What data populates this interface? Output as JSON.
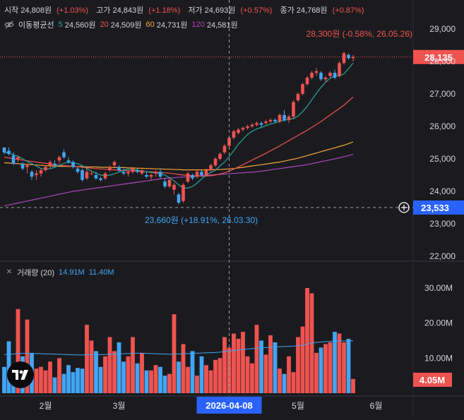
{
  "header": {
    "ohlc": [
      {
        "label": "시작",
        "value": "24,808원",
        "change": "(+1.03%)"
      },
      {
        "label": "고가",
        "value": "24,843원",
        "change": "(+1.18%)"
      },
      {
        "label": "저가",
        "value": "24,693원",
        "change": "(+0.57%)"
      },
      {
        "label": "종가",
        "value": "24,768원",
        "change": "(+0.87%)"
      }
    ],
    "ma_title": "이동평균선",
    "ma": [
      {
        "period": "5",
        "value": "24,560원",
        "color": "#26a69a"
      },
      {
        "period": "20",
        "value": "24,509원",
        "color": "#ef5350"
      },
      {
        "period": "60",
        "value": "24,731원",
        "color": "#f7a53b"
      },
      {
        "period": "120",
        "value": "24,581원",
        "color": "#ab47bc"
      }
    ],
    "volume_title": "거래량 (20)",
    "volume_ma_values": [
      "14.91M",
      "11.40M"
    ],
    "volume_value_color": "#42a5f5"
  },
  "annotations": {
    "high": "28,300원 (-0.58%, 26.05.26)",
    "low": "23,660원 (+18.91%, 26.03.30)"
  },
  "price_axis": {
    "ticks": [
      "29,000",
      "28,000",
      "27,000",
      "26,000",
      "25,000",
      "24,000",
      "23,000",
      "22,000"
    ],
    "current_label": "28,135",
    "crosshair_label": "23,533"
  },
  "volume_axis": {
    "ticks": [
      "30.00M",
      "20.00M",
      "10.00M"
    ],
    "current_label": "4.05M"
  },
  "time_axis": {
    "labels": [
      "2월",
      "3월",
      "5월",
      "6월"
    ],
    "crosshair_label": "2026-04-08"
  },
  "colors": {
    "up": "#ef5350",
    "down": "#42a5f5",
    "background": "#1b1b1f",
    "ma5": "#26a69a",
    "ma20": "#ef5350",
    "ma60": "#f7a53b",
    "ma120": "#ab47bc",
    "crosshair_box": "#2962ff",
    "current_box": "#ef5350"
  },
  "chart_data": {
    "type": "candlestick",
    "price_range": [
      22000,
      29300
    ],
    "volume_range": [
      0,
      33000000
    ],
    "series": [
      {
        "name": "캔들",
        "candles": [
          [
            25350,
            25350,
            25150,
            25200
          ],
          [
            25250,
            25350,
            25100,
            25150
          ],
          [
            25100,
            25200,
            24800,
            24850
          ],
          [
            25000,
            25100,
            24900,
            25050
          ],
          [
            24850,
            24900,
            24650,
            24700
          ],
          [
            24750,
            24850,
            24550,
            24800
          ],
          [
            24600,
            24650,
            24350,
            24450
          ],
          [
            24500,
            24650,
            24350,
            24550
          ],
          [
            24550,
            24700,
            24450,
            24650
          ],
          [
            24650,
            24800,
            24600,
            24750
          ],
          [
            24800,
            24950,
            24700,
            24900
          ],
          [
            24850,
            24950,
            24750,
            24800
          ],
          [
            24950,
            25100,
            24850,
            25050
          ],
          [
            25200,
            25300,
            25000,
            25050
          ],
          [
            24950,
            25050,
            24850,
            24900
          ],
          [
            24900,
            24950,
            24700,
            24750
          ],
          [
            24700,
            24750,
            24550,
            24600
          ],
          [
            24650,
            24700,
            24300,
            24350
          ],
          [
            24400,
            24700,
            24350,
            24600
          ],
          [
            24550,
            24650,
            24500,
            24550
          ],
          [
            24500,
            24600,
            24350,
            24400
          ],
          [
            24400,
            24450,
            24300,
            24350
          ],
          [
            24400,
            24600,
            24350,
            24550
          ],
          [
            24650,
            24800,
            24600,
            24750
          ],
          [
            24800,
            24950,
            24750,
            24900
          ],
          [
            24750,
            24800,
            24600,
            24650
          ],
          [
            24600,
            24700,
            24500,
            24550
          ],
          [
            24550,
            24650,
            24450,
            24600
          ],
          [
            24600,
            24750,
            24550,
            24700
          ],
          [
            24650,
            24700,
            24550,
            24600
          ],
          [
            24550,
            24700,
            24500,
            24650
          ],
          [
            24500,
            24600,
            24400,
            24450
          ],
          [
            24450,
            24550,
            24350,
            24500
          ],
          [
            24550,
            24650,
            24450,
            24600
          ],
          [
            24600,
            24700,
            24400,
            24450
          ],
          [
            24300,
            24400,
            24100,
            24150
          ],
          [
            24150,
            24400,
            24100,
            24350
          ],
          [
            24050,
            24250,
            23900,
            24200
          ],
          [
            23900,
            23950,
            23600,
            23650
          ],
          [
            23700,
            24250,
            23650,
            24200
          ],
          [
            24300,
            24600,
            24250,
            24550
          ],
          [
            24500,
            24550,
            24350,
            24400
          ],
          [
            24450,
            24650,
            24400,
            24600
          ],
          [
            24600,
            24650,
            24450,
            24500
          ],
          [
            24500,
            24700,
            24450,
            24650
          ],
          [
            24650,
            24850,
            24600,
            24800
          ],
          [
            24800,
            25050,
            24750,
            25000
          ],
          [
            25000,
            25200,
            24950,
            25150
          ],
          [
            25200,
            25450,
            25150,
            25400
          ],
          [
            25400,
            25700,
            25350,
            25650
          ],
          [
            25650,
            25900,
            25600,
            25850
          ],
          [
            25800,
            25950,
            25750,
            25900
          ],
          [
            25900,
            26000,
            25850,
            25950
          ],
          [
            25950,
            26050,
            25900,
            26000
          ],
          [
            26000,
            26100,
            25950,
            26050
          ],
          [
            26050,
            26150,
            26000,
            26100
          ],
          [
            26100,
            26150,
            25950,
            26050
          ],
          [
            26100,
            26200,
            26050,
            26150
          ],
          [
            26150,
            26250,
            26100,
            26200
          ],
          [
            26200,
            26250,
            26100,
            26150
          ],
          [
            26150,
            26400,
            26100,
            26350
          ],
          [
            26350,
            26500,
            26150,
            26200
          ],
          [
            26200,
            26350,
            26100,
            26300
          ],
          [
            26300,
            26800,
            26250,
            26750
          ],
          [
            26800,
            27050,
            26750,
            27000
          ],
          [
            27000,
            27350,
            26950,
            27300
          ],
          [
            27300,
            27550,
            27250,
            27500
          ],
          [
            27500,
            27700,
            27450,
            27650
          ],
          [
            27650,
            27800,
            27550,
            27700
          ],
          [
            27650,
            27700,
            27400,
            27450
          ],
          [
            27450,
            27550,
            27350,
            27500
          ],
          [
            27550,
            27700,
            27500,
            27650
          ],
          [
            27650,
            27750,
            27450,
            27500
          ],
          [
            27550,
            28000,
            27500,
            27950
          ],
          [
            27950,
            28300,
            27900,
            28250
          ],
          [
            28200,
            28250,
            28050,
            28100
          ],
          [
            28100,
            28200,
            28000,
            28135
          ]
        ]
      },
      {
        "name": "이동평균 5",
        "values": [
          25200,
          25180,
          25120,
          25080,
          25000,
          24920,
          24850,
          24780,
          24700,
          24680,
          24700,
          24740,
          24800,
          24860,
          24900,
          24880,
          24850,
          24790,
          24700,
          24620,
          24560,
          24500,
          24480,
          24500,
          24540,
          24590,
          24650,
          24680,
          24680,
          24650,
          24620,
          24600,
          24580,
          24560,
          24540,
          24500,
          24420,
          24320,
          24200,
          24100,
          24100,
          24150,
          24250,
          24380,
          24500,
          24580,
          24650,
          24780,
          24900,
          25070,
          25250,
          25450,
          25600,
          25750,
          25850,
          25920,
          25970,
          26020,
          26070,
          26110,
          26150,
          26190,
          26210,
          26240,
          26320,
          26450,
          26620,
          26820,
          27020,
          27200,
          27360,
          27480,
          27550,
          27560,
          27620,
          27780,
          27950
        ]
      },
      {
        "name": "이동평균 20",
        "values": [
          25050,
          25030,
          25000,
          24980,
          24960,
          24940,
          24920,
          24900,
          24880,
          24860,
          24840,
          24820,
          24800,
          24790,
          24780,
          24770,
          24760,
          24740,
          24730,
          24710,
          24700,
          24690,
          24680,
          24670,
          24660,
          24650,
          24640,
          24640,
          24630,
          24620,
          24610,
          24600,
          24600,
          24590,
          24580,
          24570,
          24560,
          24540,
          24520,
          24500,
          24490,
          24480,
          24470,
          24470,
          24470,
          24480,
          24500,
          24530,
          24570,
          24620,
          24680,
          24750,
          24820,
          24890,
          24960,
          25030,
          25100,
          25170,
          25250,
          25320,
          25400,
          25480,
          25560,
          25640,
          25720,
          25800,
          25880,
          25970,
          26060,
          26150,
          26250,
          26350,
          26450,
          26550,
          26650,
          26780,
          26900
        ]
      },
      {
        "name": "이동평균 60",
        "values": [
          24880,
          24870,
          24860,
          24850,
          24840,
          24830,
          24820,
          24810,
          24800,
          24790,
          24780,
          24780,
          24770,
          24770,
          24770,
          24760,
          24760,
          24760,
          24750,
          24750,
          24750,
          24740,
          24740,
          24740,
          24730,
          24730,
          24730,
          24720,
          24720,
          24710,
          24710,
          24700,
          24700,
          24690,
          24690,
          24680,
          24680,
          24670,
          24670,
          24660,
          24660,
          24660,
          24660,
          24660,
          24660,
          24660,
          24670,
          24670,
          24680,
          24690,
          24700,
          24720,
          24740,
          24760,
          24780,
          24800,
          24820,
          24840,
          24860,
          24880,
          24900,
          24930,
          24960,
          24990,
          25020,
          25060,
          25100,
          25140,
          25180,
          25220,
          25260,
          25300,
          25340,
          25380,
          25420,
          25470,
          25520
        ]
      },
      {
        "name": "이동평균 120",
        "values": [
          23550,
          23580,
          23610,
          23640,
          23670,
          23700,
          23730,
          23760,
          23790,
          23820,
          23850,
          23880,
          23910,
          23940,
          23970,
          24000,
          24020,
          24040,
          24060,
          24080,
          24100,
          24120,
          24140,
          24160,
          24180,
          24200,
          24220,
          24240,
          24260,
          24280,
          24300,
          24320,
          24340,
          24360,
          24380,
          24400,
          24410,
          24420,
          24430,
          24440,
          24450,
          24460,
          24470,
          24480,
          24490,
          24500,
          24510,
          24520,
          24530,
          24540,
          24550,
          24560,
          24570,
          24580,
          24590,
          24600,
          24620,
          24640,
          24660,
          24680,
          24700,
          24720,
          24740,
          24760,
          24780,
          24800,
          24820,
          24850,
          24880,
          24910,
          24940,
          24970,
          25000,
          25030,
          25060,
          25100,
          25140
        ]
      },
      {
        "name": "거래량",
        "values": [
          7500000,
          14800000,
          6000000,
          24000000,
          10500000,
          21000000,
          11500000,
          7000000,
          7500000,
          6500000,
          9000000,
          4500000,
          10000000,
          5500000,
          8000000,
          6000000,
          7200000,
          7000000,
          19500000,
          15000000,
          12000000,
          7500000,
          10500000,
          16000000,
          12000000,
          14500000,
          9000000,
          10500000,
          16000000,
          8500000,
          11500000,
          6500000,
          6500000,
          8000000,
          7500000,
          5000000,
          5500000,
          22500000,
          9000000,
          14000000,
          7500000,
          12000000,
          5000000,
          10500000,
          8000000,
          6500000,
          9500000,
          10000000,
          16000000,
          13000000,
          17000000,
          15500000,
          17500000,
          10500000,
          8500000,
          19500000,
          15000000,
          11000000,
          16500000,
          14500000,
          7000000,
          5500000,
          10500000,
          6000000,
          16000000,
          19000000,
          30000000,
          28500000,
          11500000,
          13000000,
          14000000,
          14500000,
          17500000,
          17000000,
          14500000,
          15500000,
          4050000
        ]
      },
      {
        "name": "거래량 이동평균 20",
        "values": [
          11000000,
          11100000,
          11150000,
          11300000,
          11350000,
          11400000,
          11350000,
          11300000,
          11250000,
          11200000,
          11200000,
          11150000,
          11100000,
          11050000,
          11000000,
          10950000,
          10900000,
          10900000,
          10950000,
          11000000,
          11000000,
          11000000,
          11050000,
          11100000,
          11150000,
          11200000,
          11250000,
          11300000,
          11350000,
          11400000,
          11400000,
          11350000,
          11300000,
          11250000,
          11200000,
          11150000,
          11100000,
          11150000,
          11200000,
          11250000,
          11300000,
          11350000,
          11400000,
          11450000,
          11500000,
          11550000,
          11600000,
          11700000,
          11850000,
          12000000,
          12150000,
          12300000,
          12450000,
          12600000,
          12700000,
          12800000,
          12900000,
          13000000,
          13100000,
          13200000,
          13250000,
          13300000,
          13350000,
          13400000,
          13500000,
          13700000,
          14000000,
          14300000,
          14500000,
          14600000,
          14700000,
          14800000,
          14850000,
          14900000,
          14900000,
          14910000,
          14910000
        ]
      }
    ]
  }
}
